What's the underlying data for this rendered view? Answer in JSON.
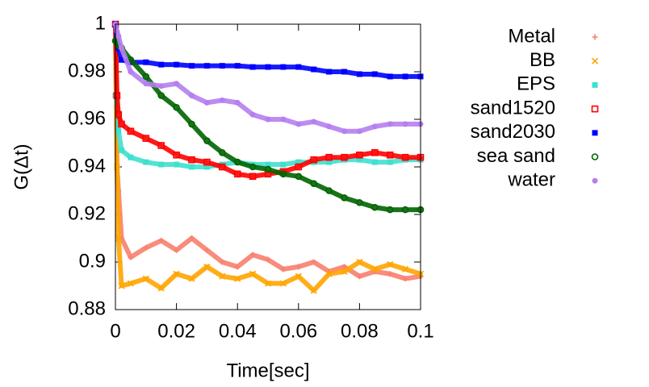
{
  "chart_data": {
    "type": "line",
    "xlabel": "Time[sec]",
    "ylabel": "G(Δt)",
    "x": [
      0,
      0.0005,
      0.001,
      0.002,
      0.005,
      0.01,
      0.015,
      0.02,
      0.025,
      0.03,
      0.035,
      0.04,
      0.045,
      0.05,
      0.055,
      0.06,
      0.065,
      0.07,
      0.075,
      0.08,
      0.085,
      0.09,
      0.095,
      0.1
    ],
    "xlim": [
      0,
      0.1
    ],
    "xticks": [
      0,
      0.02,
      0.04,
      0.06,
      0.08,
      0.1
    ],
    "ylim": [
      0.88,
      1
    ],
    "yticks": [
      0.88,
      0.9,
      0.92,
      0.94,
      0.96,
      0.98,
      1
    ],
    "legend": "outside-right",
    "series": [
      {
        "name": "Metal",
        "color": "#f8806f",
        "marker": "plus",
        "values": [
          1,
          0.94,
          0.93,
          0.91,
          0.902,
          0.906,
          0.909,
          0.905,
          0.91,
          0.905,
          0.9,
          0.898,
          0.903,
          0.901,
          0.897,
          0.898,
          0.9,
          0.896,
          0.898,
          0.894,
          0.896,
          0.895,
          0.893,
          0.894
        ]
      },
      {
        "name": "BB",
        "color": "#ffa500",
        "marker": "cross",
        "values": [
          1,
          0.94,
          0.91,
          0.89,
          0.891,
          0.893,
          0.889,
          0.895,
          0.893,
          0.898,
          0.894,
          0.893,
          0.895,
          0.891,
          0.891,
          0.894,
          0.888,
          0.895,
          0.896,
          0.9,
          0.897,
          0.899,
          0.897,
          0.895
        ]
      },
      {
        "name": "EPS",
        "color": "#40e0d0",
        "marker": "square",
        "values": [
          0.97,
          0.968,
          0.955,
          0.947,
          0.944,
          0.942,
          0.941,
          0.941,
          0.94,
          0.94,
          0.941,
          0.942,
          0.941,
          0.941,
          0.941,
          0.942,
          0.942,
          0.942,
          0.943,
          0.943,
          0.942,
          0.942,
          0.943,
          0.943
        ]
      },
      {
        "name": "sand1520",
        "color": "#ff0000",
        "marker": "open-square",
        "values": [
          1,
          0.97,
          0.962,
          0.958,
          0.955,
          0.952,
          0.949,
          0.945,
          0.943,
          0.942,
          0.94,
          0.937,
          0.936,
          0.937,
          0.938,
          0.94,
          0.943,
          0.944,
          0.944,
          0.945,
          0.946,
          0.945,
          0.944,
          0.944
        ]
      },
      {
        "name": "sand2030",
        "color": "#0000ff",
        "marker": "square",
        "values": [
          1,
          0.995,
          0.99,
          0.985,
          0.984,
          0.984,
          0.983,
          0.983,
          0.9825,
          0.9825,
          0.9825,
          0.9825,
          0.982,
          0.982,
          0.982,
          0.982,
          0.981,
          0.98,
          0.98,
          0.979,
          0.979,
          0.978,
          0.978,
          0.978
        ]
      },
      {
        "name": "sea sand",
        "color": "#006400",
        "marker": "open-circle",
        "values": [
          0.993,
          0.992,
          0.991,
          0.99,
          0.985,
          0.978,
          0.97,
          0.965,
          0.958,
          0.951,
          0.946,
          0.942,
          0.94,
          0.939,
          0.937,
          0.936,
          0.933,
          0.93,
          0.927,
          0.925,
          0.923,
          0.922,
          0.922,
          0.922
        ]
      },
      {
        "name": "water",
        "color": "#b67ff0",
        "marker": "circle",
        "values": [
          1,
          0.997,
          0.995,
          0.99,
          0.98,
          0.975,
          0.974,
          0.975,
          0.97,
          0.967,
          0.968,
          0.967,
          0.962,
          0.96,
          0.96,
          0.958,
          0.959,
          0.957,
          0.955,
          0.955,
          0.957,
          0.958,
          0.958,
          0.958
        ]
      }
    ]
  }
}
